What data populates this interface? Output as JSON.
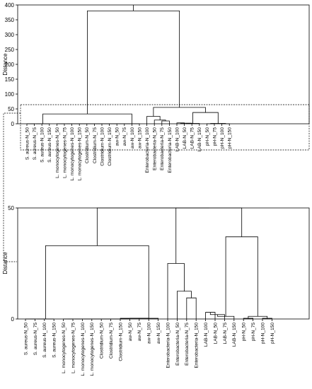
{
  "chart_data": [
    {
      "type": "dendrogram",
      "ylabel": "Distance",
      "ylim": [
        0,
        400
      ],
      "yticks": [
        0,
        50,
        100,
        150,
        200,
        250,
        300,
        350,
        400
      ],
      "leaves": [
        "S. aureus-N_50",
        "S. aureus-N_75",
        "S. aureus-N_100",
        "S. aureus-N_150",
        "L. monocytogenes-N_50",
        "L. monocytogenes-N_75",
        "L. monocytogenes-N_100",
        "L. monocytogenes-N_150",
        "Clostridium-N_50",
        "Clostridium-N_75",
        "Clostridium-N_100",
        "Clostridium-N_150",
        "aw-N_50",
        "aw-N_75",
        "aw-N_100",
        "aw-N_150",
        "Enterobacteria-N_100",
        "Enterobacteria-N_50",
        "Enterobacteria-N_75",
        "Enterobacteria-N_150",
        "LAB-N_100",
        "LAB-N_50",
        "LAB-N_75",
        "LAB-N_150",
        "pH-N_50",
        "pH-N_75",
        "pH-N_100",
        "pH-N_150"
      ],
      "merges": [
        [
          0,
          1,
          0
        ],
        [
          28,
          2,
          0
        ],
        [
          29,
          3,
          0
        ],
        [
          4,
          5,
          0
        ],
        [
          31,
          6,
          0
        ],
        [
          32,
          7,
          0
        ],
        [
          33,
          8,
          0
        ],
        [
          34,
          9,
          0
        ],
        [
          35,
          10,
          0
        ],
        [
          36,
          11,
          0
        ],
        [
          37,
          12,
          0
        ],
        [
          38,
          13,
          0.3
        ],
        [
          39,
          14,
          0.3
        ],
        [
          40,
          15,
          0.3
        ],
        [
          30,
          41,
          33
        ],
        [
          18,
          19,
          9.5
        ],
        [
          17,
          43,
          12.5
        ],
        [
          16,
          44,
          25
        ],
        [
          20,
          21,
          3
        ],
        [
          46,
          22,
          2
        ],
        [
          47,
          23,
          1.2
        ],
        [
          24,
          25,
          0.3
        ],
        [
          26,
          27,
          0.3
        ],
        [
          49,
          50,
          1.2
        ],
        [
          48,
          51,
          38
        ],
        [
          45,
          52,
          55
        ],
        [
          42,
          53,
          380
        ]
      ]
    },
    {
      "type": "dendrogram",
      "ylabel": "Distance",
      "ylim": [
        0,
        50
      ],
      "yticks": [
        0,
        50
      ],
      "leaves": [
        "S. aureus-N_50",
        "S. aureus-N_75",
        "S. aureus-N_100",
        "S. aureus-N_150",
        "L. monocytogenes-N_50",
        "L. monocytogenes-N_75",
        "L. monocytogenes-N_100",
        "L. monocytogenes-N_150",
        "Clostridium-N_50",
        "Clostridium-N_75",
        "Clostridium-N_150",
        "aw-N_50",
        "aw-N_75",
        "aw-N_100",
        "aw-N_150",
        "Enterobacteria-N_100",
        "Enterobacteria-N_50",
        "Enterobacteria-N_75",
        "Enterobacteria-N_150",
        "LAB-N_100",
        "LAB-N_50",
        "LAB-N_75",
        "LAB-N_150",
        "pH-N_50",
        "pH-N_75",
        "pH-N_100",
        "pH-N_150"
      ],
      "merges": [
        [
          0,
          1,
          0
        ],
        [
          27,
          2,
          0
        ],
        [
          28,
          3,
          0
        ],
        [
          4,
          5,
          0
        ],
        [
          30,
          6,
          0
        ],
        [
          31,
          7,
          0
        ],
        [
          32,
          8,
          0
        ],
        [
          33,
          9,
          0
        ],
        [
          34,
          10,
          0
        ],
        [
          35,
          11,
          0
        ],
        [
          36,
          12,
          0.3
        ],
        [
          37,
          13,
          0.3
        ],
        [
          38,
          14,
          0.3
        ],
        [
          29,
          39,
          33
        ],
        [
          17,
          18,
          9.5
        ],
        [
          16,
          41,
          12.5
        ],
        [
          15,
          42,
          25
        ],
        [
          19,
          20,
          3
        ],
        [
          44,
          21,
          2
        ],
        [
          45,
          22,
          1.2
        ],
        [
          23,
          24,
          0.3
        ],
        [
          25,
          26,
          0.3
        ],
        [
          47,
          48,
          1.2
        ],
        [
          46,
          49,
          37
        ],
        [
          43,
          50,
          50
        ],
        [
          40,
          51,
          50
        ]
      ]
    }
  ]
}
